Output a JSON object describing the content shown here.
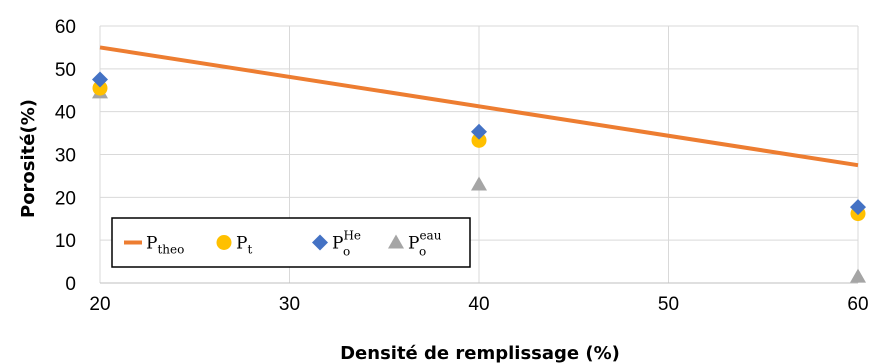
{
  "chart_data": {
    "type": "scatter",
    "xlabel": "Densité de remplissage (%)",
    "ylabel": "Porosité(%)",
    "xlim": [
      20,
      60
    ],
    "ylim": [
      0,
      60
    ],
    "xticks": [
      "20",
      "30",
      "40",
      "50",
      "60"
    ],
    "yticks": [
      "0",
      "10",
      "20",
      "30",
      "40",
      "50",
      "60"
    ],
    "grid": true,
    "legend_position": "bottom-left",
    "series": [
      {
        "legend_main": "P",
        "legend_sub": "theo",
        "legend_sup": "",
        "marker": "line",
        "color": "#ED7D31",
        "x": [
          20,
          60
        ],
        "y": [
          55,
          27.5
        ]
      },
      {
        "legend_main": "P",
        "legend_sub": "t",
        "legend_sup": "",
        "marker": "circle",
        "color": "#FFC000",
        "x": [
          20,
          40,
          60
        ],
        "y": [
          45.5,
          33.3,
          16.2
        ]
      },
      {
        "legend_main": "P",
        "legend_sub": "o",
        "legend_sup": "He",
        "marker": "diamond",
        "color": "#4472C4",
        "x": [
          20,
          40,
          60
        ],
        "y": [
          47.5,
          35.3,
          17.7
        ]
      },
      {
        "legend_main": "P",
        "legend_sub": "o",
        "legend_sup": "eau",
        "marker": "triangle",
        "color": "#A5A5A5",
        "x": [
          20,
          40,
          60
        ],
        "y": [
          44.5,
          23,
          1.5
        ]
      }
    ]
  }
}
